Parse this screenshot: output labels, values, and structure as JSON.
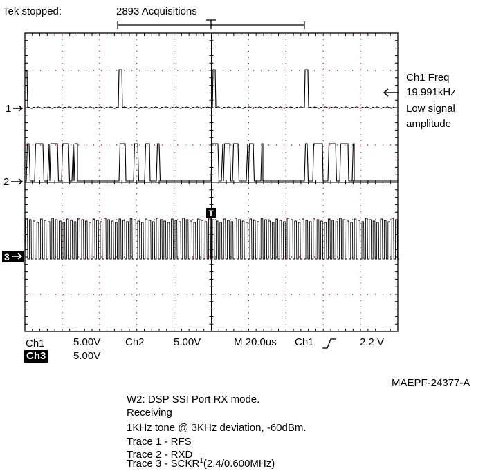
{
  "status": {
    "state": "Tek stopped:",
    "acquisitions": "2893 Acquisitions"
  },
  "channel_markers": {
    "ch1": "1",
    "ch2": "2",
    "ch3": "3"
  },
  "trigger_marker": "T",
  "measurement": {
    "line1": "Ch1 Freq",
    "line2": "19.991kHz",
    "line3": "Low signal",
    "line4": "amplitude"
  },
  "readout": {
    "ch1_label": "Ch1",
    "ch1_scale": "5.00V",
    "ch2_label": "Ch2",
    "ch2_scale": "5.00V",
    "timebase": "M 20.0us",
    "trigger_source": "Ch1",
    "trigger_level": "2.2 V",
    "ch3_label": "Ch3",
    "ch3_scale": "5.00V"
  },
  "figure_id": "MAEPF-24377-A",
  "caption": {
    "line1": "W2: DSP SSI Port RX mode.",
    "line2": "Receiving",
    "line3": "1KHz tone @ 3KHz deviation, -60dBm.",
    "line4": "Trace 1 - RFS",
    "line5": "Trace 2 - RXD",
    "line6_main": "Trace 3 - SCKR",
    "line6_sup": "1",
    "line6_tail": "(2.4/0.600MHz)"
  },
  "colors": {
    "trace": "#000000",
    "grid": "#000000",
    "dots": "#cc0000"
  }
}
